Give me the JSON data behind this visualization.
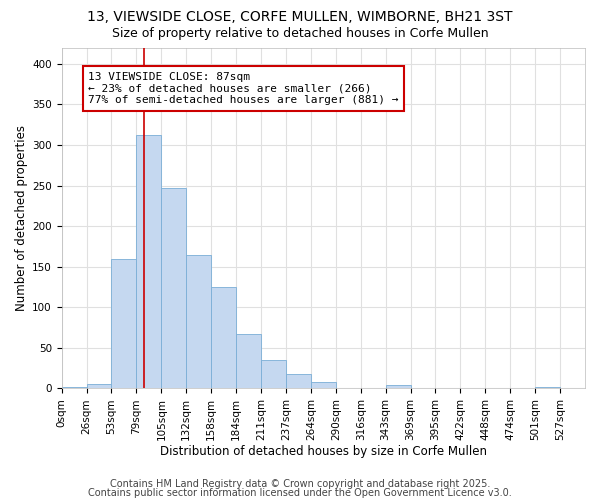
{
  "title1": "13, VIEWSIDE CLOSE, CORFE MULLEN, WIMBORNE, BH21 3ST",
  "title2": "Size of property relative to detached houses in Corfe Mullen",
  "xlabel": "Distribution of detached houses by size in Corfe Mullen",
  "ylabel": "Number of detached properties",
  "bin_labels": [
    "0sqm",
    "26sqm",
    "53sqm",
    "79sqm",
    "105sqm",
    "132sqm",
    "158sqm",
    "184sqm",
    "211sqm",
    "237sqm",
    "264sqm",
    "290sqm",
    "316sqm",
    "343sqm",
    "369sqm",
    "395sqm",
    "422sqm",
    "448sqm",
    "474sqm",
    "501sqm",
    "527sqm"
  ],
  "bar_values": [
    2,
    5,
    160,
    312,
    247,
    165,
    125,
    67,
    35,
    18,
    8,
    1,
    1,
    4,
    1,
    1,
    1,
    1,
    1,
    2
  ],
  "bar_color": "#c5d8f0",
  "bar_edge_color": "#7aaed6",
  "property_line_x": 87,
  "property_line_color": "#cc0000",
  "bin_width": 26.3,
  "ylim": [
    0,
    420
  ],
  "yticks": [
    0,
    50,
    100,
    150,
    200,
    250,
    300,
    350,
    400
  ],
  "annotation_text": "13 VIEWSIDE CLOSE: 87sqm\n← 23% of detached houses are smaller (266)\n77% of semi-detached houses are larger (881) →",
  "annotation_box_color": "#ffffff",
  "annotation_box_edge": "#cc0000",
  "footer1": "Contains HM Land Registry data © Crown copyright and database right 2025.",
  "footer2": "Contains public sector information licensed under the Open Government Licence v3.0.",
  "background_color": "#ffffff",
  "grid_color": "#e0e0e0",
  "title_fontsize": 10,
  "subtitle_fontsize": 9,
  "axis_label_fontsize": 8.5,
  "tick_fontsize": 7.5,
  "annotation_fontsize": 8,
  "footer_fontsize": 7
}
